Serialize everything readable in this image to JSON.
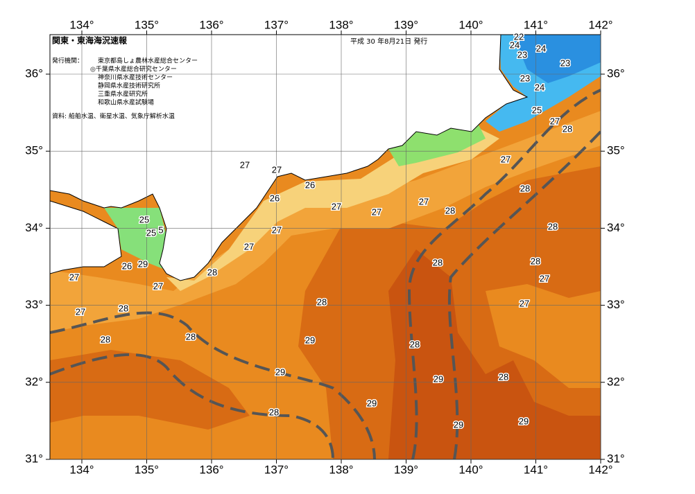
{
  "header": {
    "title": "関東・東海海況速報",
    "date": "平成 30 年8月21日 発行",
    "issuer_label": "発行機関：",
    "issuers": [
      "東京都島しょ農林水産総合センター",
      "◎千葉県水産総合研究センター",
      "神奈川県水産技術センター",
      "静岡県水産技術研究所",
      "三重県水産研究所",
      "和歌山県水産試験場"
    ],
    "source": "資料: 船舶水温、衛星水温、気象庁解析水温"
  },
  "map": {
    "lon_ticks": [
      {
        "value": 134,
        "label": "134°"
      },
      {
        "value": 135,
        "label": "135°"
      },
      {
        "value": 136,
        "label": "136°"
      },
      {
        "value": 137,
        "label": "137°"
      },
      {
        "value": 138,
        "label": "138°"
      },
      {
        "value": 139,
        "label": "139°"
      },
      {
        "value": 140,
        "label": "140°"
      },
      {
        "value": 141,
        "label": "141°"
      },
      {
        "value": 142,
        "label": "142°"
      }
    ],
    "lat_ticks": [
      {
        "value": 36,
        "label": "36°"
      },
      {
        "value": 35,
        "label": "35°"
      },
      {
        "value": 34,
        "label": "34°"
      },
      {
        "value": 33,
        "label": "33°"
      },
      {
        "value": 32,
        "label": "32°"
      },
      {
        "value": 31,
        "label": "31°"
      }
    ],
    "contour_labels": [
      22,
      24,
      23,
      24,
      23,
      23,
      24,
      25,
      27,
      28,
      27,
      27,
      26,
      26,
      27,
      27,
      27,
      28,
      28,
      27,
      28,
      25,
      5,
      25,
      27,
      27,
      26,
      29,
      28,
      28,
      27,
      27,
      27,
      28,
      28,
      27,
      27,
      28,
      28,
      28,
      29,
      28,
      29,
      29,
      28,
      28,
      29,
      29,
      29
    ]
  }
}
